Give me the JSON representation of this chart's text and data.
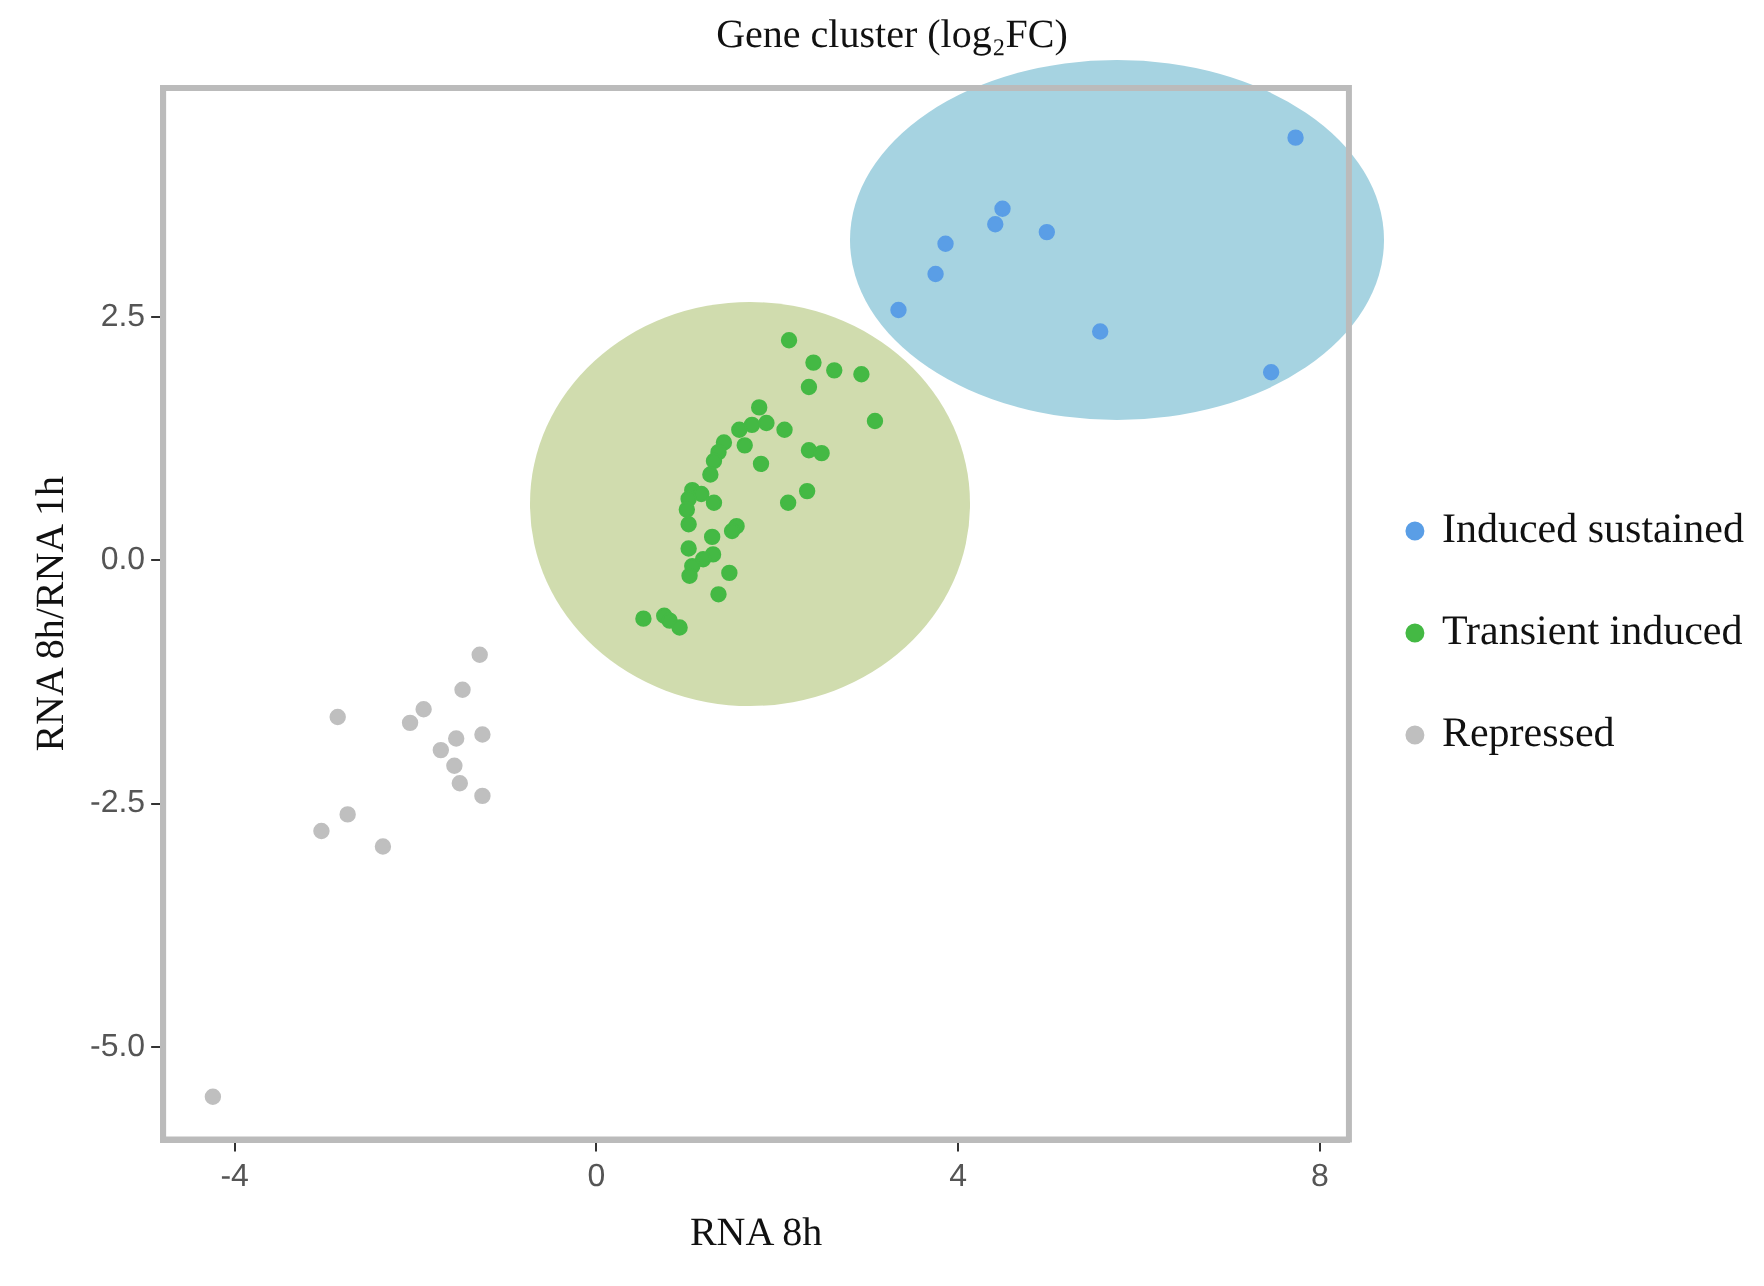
{
  "chart_data": {
    "type": "scatter",
    "title": "Gene cluster (log₂FC)",
    "xlabel": "RNA 8h",
    "ylabel": "RNA 8h/RNA 1h",
    "xlim": [
      -4.79,
      8.32
    ],
    "ylim": [
      -5.95,
      4.85
    ],
    "xticks": [
      -4,
      0,
      4,
      8
    ],
    "yticks": [
      {
        "value": -5,
        "label": "-5.0"
      },
      {
        "value": -2.5,
        "label": "-2.5"
      },
      {
        "value": 0,
        "label": "0.0"
      },
      {
        "value": 2.5,
        "label": "2.5"
      }
    ],
    "grid": false,
    "legend": "right",
    "marker": "circle",
    "series": [
      {
        "name": "Induced sustained",
        "color": "#5a9ee6",
        "x": [
          7.73,
          4.49,
          4.41,
          4.98,
          3.86,
          3.75,
          3.34,
          5.57,
          7.46
        ],
        "values": [
          4.34,
          3.61,
          3.45,
          3.37,
          3.25,
          2.94,
          2.57,
          2.35,
          1.93
        ]
      },
      {
        "name": "Transient induced",
        "color": "#44b944",
        "x": [
          2.13,
          2.4,
          2.63,
          2.93,
          2.35,
          3.08,
          1.8,
          1.58,
          1.72,
          1.88,
          2.08,
          1.64,
          1.41,
          1.35,
          1.3,
          2.35,
          2.49,
          1.82,
          1.26,
          1.06,
          1.16,
          1.02,
          1.3,
          1.0,
          2.33,
          2.12,
          1.02,
          1.55,
          1.5,
          1.28,
          1.02,
          1.29,
          1.18,
          1.06,
          1.03,
          1.47,
          1.35,
          0.52,
          0.75,
          0.81,
          0.92
        ],
        "values": [
          2.26,
          2.03,
          1.95,
          1.91,
          1.78,
          1.43,
          1.57,
          1.34,
          1.39,
          1.41,
          1.34,
          1.18,
          1.21,
          1.11,
          1.02,
          1.13,
          1.1,
          0.99,
          0.88,
          0.72,
          0.68,
          0.63,
          0.59,
          0.52,
          0.71,
          0.59,
          0.37,
          0.35,
          0.3,
          0.24,
          0.12,
          0.06,
          0.01,
          -0.06,
          -0.16,
          -0.13,
          -0.35,
          -0.6,
          -0.57,
          -0.62,
          -0.69
        ]
      },
      {
        "name": "Repressed",
        "color": "#bfbfbf",
        "x": [
          -1.29,
          -1.48,
          -2.86,
          -1.91,
          -2.06,
          -1.55,
          -1.26,
          -1.72,
          -1.57,
          -1.51,
          -1.26,
          -2.75,
          -3.04,
          -2.36,
          -4.24
        ],
        "values": [
          -0.97,
          -1.33,
          -1.61,
          -1.53,
          -1.67,
          -1.83,
          -1.79,
          -1.95,
          -2.11,
          -2.29,
          -2.42,
          -2.61,
          -2.78,
          -2.94,
          -5.51
        ]
      }
    ]
  }
}
